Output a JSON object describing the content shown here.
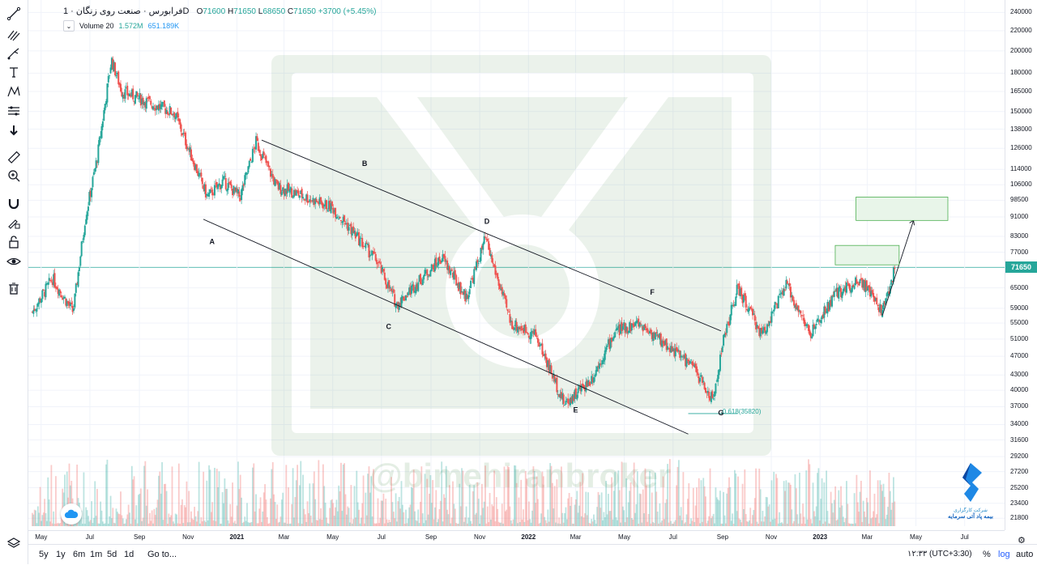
{
  "legend": {
    "symbol": "فرابورس · صنعت روی زنگان · 1D",
    "open_label": "O",
    "open": "71600",
    "high_label": "H",
    "high": "71650",
    "low_label": "L",
    "low": "68650",
    "close_label": "C",
    "close": "71650",
    "change": "+3700 (+5.45%)",
    "volume_label": "Volume 20",
    "volume": "1.572M",
    "volume_ma": "651.189K"
  },
  "watermark": "@bimehiranbroker",
  "brand": {
    "line1": "شرکت کارگزاری",
    "line2": "بیمه پاد آتی سرمایه"
  },
  "price_axis": [
    "240000",
    "220000",
    "200000",
    "180000",
    "165000",
    "150000",
    "138000",
    "126000",
    "114000",
    "106000",
    "98500",
    "91000",
    "83000",
    "77000",
    "65000",
    "59000",
    "55000",
    "51000",
    "47000",
    "43000",
    "40000",
    "37000",
    "34000",
    "31600",
    "29200",
    "27200",
    "25200",
    "23400",
    "21800"
  ],
  "last_price": "71650",
  "time_axis": [
    {
      "label": "May",
      "year": false
    },
    {
      "label": "Jul",
      "year": false
    },
    {
      "label": "Sep",
      "year": false
    },
    {
      "label": "Nov",
      "year": false
    },
    {
      "label": "2021",
      "year": true
    },
    {
      "label": "Mar",
      "year": false
    },
    {
      "label": "May",
      "year": false
    },
    {
      "label": "Jul",
      "year": false
    },
    {
      "label": "Sep",
      "year": false
    },
    {
      "label": "Nov",
      "year": false
    },
    {
      "label": "2022",
      "year": true
    },
    {
      "label": "Mar",
      "year": false
    },
    {
      "label": "May",
      "year": false
    },
    {
      "label": "Jul",
      "year": false
    },
    {
      "label": "Sep",
      "year": false
    },
    {
      "label": "Nov",
      "year": false
    },
    {
      "label": "2023",
      "year": true
    },
    {
      "label": "Mar",
      "year": false
    },
    {
      "label": "May",
      "year": false
    },
    {
      "label": "Jul",
      "year": false
    }
  ],
  "bottom_bar": {
    "ranges": [
      "5y",
      "1y",
      "6m",
      "1m",
      "5d",
      "1d"
    ],
    "goto": "Go to...",
    "clock": "۱۲:۳۳ (UTC+3:30)",
    "percent": "%",
    "log": "log",
    "auto": "auto"
  },
  "colors": {
    "up": "#26a69a",
    "down": "#ef5350",
    "grid": "#f0f3fa",
    "trendline": "#131722",
    "fib": "#26a69a",
    "box_fill": "#e8f5e9",
    "box_border": "#4caf50",
    "last_price_line": "#26a69a"
  },
  "chart_data": {
    "type": "candlestick",
    "scale": "log",
    "price_min": 21000,
    "price_max": 245000,
    "time_start": "2020-04-15",
    "time_end": "2023-08-20",
    "last_price": 71650,
    "series": [
      {
        "date": "2020-04-20",
        "close": 58000
      },
      {
        "date": "2020-05-15",
        "close": 68000
      },
      {
        "date": "2020-06-10",
        "close": 58000
      },
      {
        "date": "2020-06-25",
        "close": 90000
      },
      {
        "date": "2020-07-10",
        "close": 120000
      },
      {
        "date": "2020-07-28",
        "close": 192000
      },
      {
        "date": "2020-08-10",
        "close": 165000
      },
      {
        "date": "2020-10-15",
        "close": 149000
      },
      {
        "date": "2020-11-25",
        "close": 100000
      },
      {
        "date": "2020-12-15",
        "close": 108000
      },
      {
        "date": "2021-01-05",
        "close": 100000
      },
      {
        "date": "2021-01-25",
        "close": 130000
      },
      {
        "date": "2021-02-20",
        "close": 105000
      },
      {
        "date": "2021-03-15",
        "close": 102000
      },
      {
        "date": "2021-05-01",
        "close": 95000
      },
      {
        "date": "2021-06-25",
        "close": 74000
      },
      {
        "date": "2021-07-20",
        "close": 60000
      },
      {
        "date": "2021-08-20",
        "close": 68000
      },
      {
        "date": "2021-09-15",
        "close": 75000
      },
      {
        "date": "2021-10-15",
        "close": 62000
      },
      {
        "date": "2021-11-08",
        "close": 82000
      },
      {
        "date": "2021-12-10",
        "close": 55000
      },
      {
        "date": "2022-01-10",
        "close": 52000
      },
      {
        "date": "2022-02-15",
        "close": 37500
      },
      {
        "date": "2022-03-20",
        "close": 42000
      },
      {
        "date": "2022-04-20",
        "close": 53000
      },
      {
        "date": "2022-05-20",
        "close": 55000
      },
      {
        "date": "2022-06-20",
        "close": 50000
      },
      {
        "date": "2022-07-25",
        "close": 45000
      },
      {
        "date": "2022-08-20",
        "close": 38000
      },
      {
        "date": "2022-09-01",
        "close": 50000
      },
      {
        "date": "2022-09-20",
        "close": 65000
      },
      {
        "date": "2022-10-20",
        "close": 52000
      },
      {
        "date": "2022-11-20",
        "close": 66000
      },
      {
        "date": "2022-12-20",
        "close": 52000
      },
      {
        "date": "2023-01-20",
        "close": 63000
      },
      {
        "date": "2023-02-20",
        "close": 68000
      },
      {
        "date": "2023-03-20",
        "close": 58000
      },
      {
        "date": "2023-04-05",
        "close": 71650
      }
    ],
    "trendlines": [
      {
        "from": {
          "date": "2021-02-01",
          "price": 131000
        },
        "to": {
          "date": "2022-08-30",
          "price": 53000
        }
      },
      {
        "from": {
          "date": "2020-11-20",
          "price": 90000
        },
        "to": {
          "date": "2022-07-20",
          "price": 32500
        }
      },
      {
        "from": {
          "date": "2023-03-20",
          "price": 57000
        },
        "to": {
          "date": "2023-04-28",
          "price": 89500
        }
      }
    ],
    "annotations": [
      {
        "text": "A",
        "date": "2020-12-01",
        "price": 80000
      },
      {
        "text": "B",
        "date": "2021-06-10",
        "price": 116000
      },
      {
        "text": "C",
        "date": "2021-07-10",
        "price": 53500
      },
      {
        "text": "D",
        "date": "2021-11-10",
        "price": 88000
      },
      {
        "text": "E",
        "date": "2022-03-01",
        "price": 36000
      },
      {
        "text": "F",
        "date": "2022-06-05",
        "price": 63000
      },
      {
        "text": "G",
        "date": "2022-08-30",
        "price": 35500
      },
      {
        "text": "0.618(35820)",
        "date": "2022-09-25",
        "price": 35820
      }
    ],
    "fib_level": {
      "label": "0.618(35820)",
      "price": 35820,
      "from": "2022-07-20",
      "to": "2022-09-20"
    },
    "target_boxes": [
      {
        "from": "2023-01-20",
        "to": "2023-04-10",
        "low": 72500,
        "high": 79500
      },
      {
        "from": "2023-02-15",
        "to": "2023-06-10",
        "low": 89500,
        "high": 100000
      }
    ]
  }
}
